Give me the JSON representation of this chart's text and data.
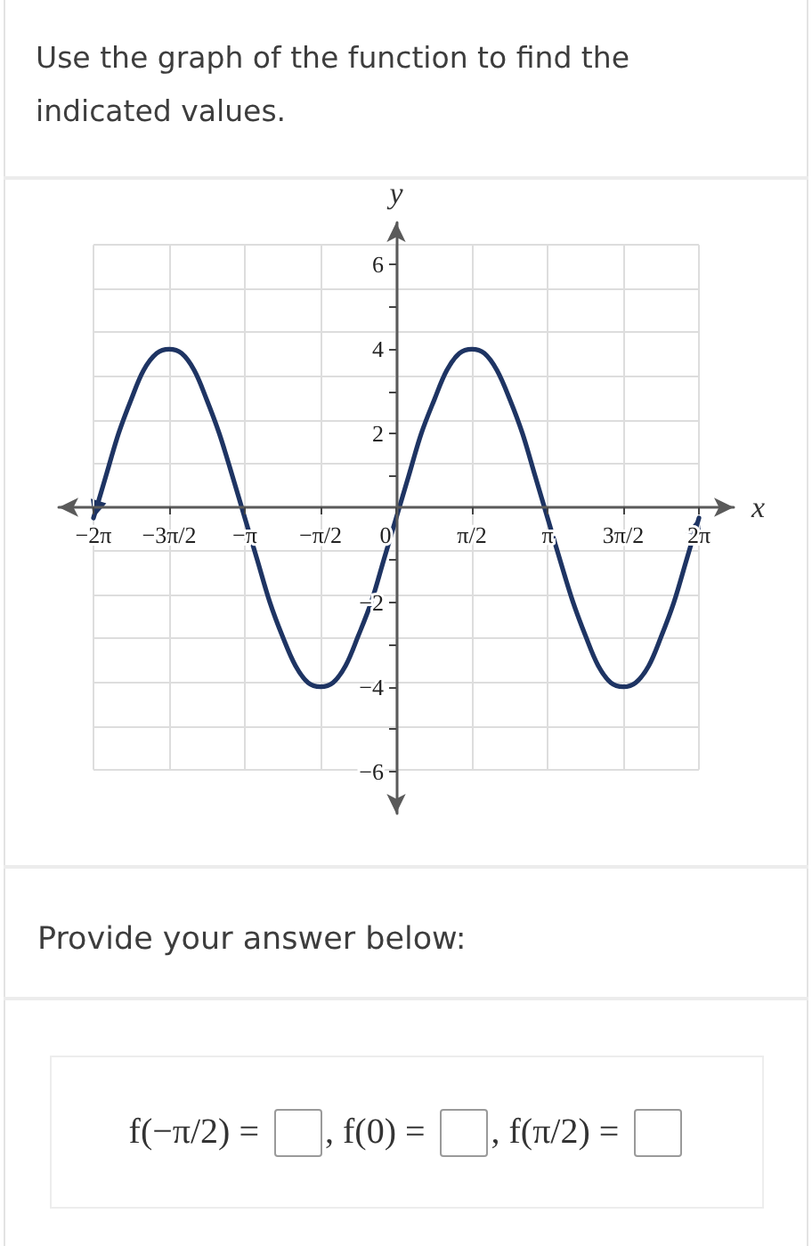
{
  "chart_data": {
    "type": "line",
    "title": "Use the graph of the function to find the indicated values.",
    "xlabel": "x",
    "ylabel": "y",
    "x": [
      -6.28,
      -6.02,
      -5.76,
      -5.5,
      -5.24,
      -4.97,
      -4.71,
      -4.45,
      -4.19,
      -3.93,
      -3.67,
      -3.4,
      -3.14,
      -2.88,
      -2.62,
      -2.36,
      -2.09,
      -1.83,
      -1.57,
      -1.31,
      -1.05,
      -0.79,
      -0.52,
      -0.26,
      0,
      0.26,
      0.52,
      0.79,
      1.05,
      1.31,
      1.57,
      1.83,
      2.09,
      2.36,
      2.62,
      2.88,
      3.14,
      3.4,
      3.67,
      3.93,
      4.19,
      4.45,
      4.71,
      4.97,
      5.24,
      5.5,
      5.76,
      6.02,
      6.28
    ],
    "values": [
      0,
      1,
      2,
      2.8,
      3.5,
      3.9,
      4,
      3.9,
      3.5,
      2.8,
      2,
      1,
      0,
      -1,
      -2,
      -2.8,
      -3.5,
      -3.9,
      -4,
      -3.9,
      -3.5,
      -2.8,
      -2,
      -1,
      0,
      1,
      2,
      2.8,
      3.5,
      3.9,
      4,
      3.9,
      3.5,
      2.8,
      2,
      1,
      0,
      -1,
      -2,
      -2.8,
      -3.5,
      -3.9,
      -4,
      -3.9,
      -3.5,
      -2.8,
      -2,
      -1,
      0
    ],
    "color": "#1e3463",
    "xlim": [
      -7,
      7
    ],
    "ylim": [
      -7,
      7
    ],
    "xticks": [
      {
        "value": -6.28,
        "label": "−2π"
      },
      {
        "value": -4.71,
        "label": "−3π/2"
      },
      {
        "value": -3.14,
        "label": "−π"
      },
      {
        "value": -1.57,
        "label": "−π/2"
      },
      {
        "value": 0,
        "label": "0"
      },
      {
        "value": 1.57,
        "label": "π/2"
      },
      {
        "value": 3.14,
        "label": "π"
      },
      {
        "value": 4.71,
        "label": "3π/2"
      },
      {
        "value": 6.28,
        "label": "2π"
      }
    ],
    "yticks": [
      {
        "value": -6,
        "label": "−6"
      },
      {
        "value": -5,
        "label": null
      },
      {
        "value": -4,
        "label": "−4"
      },
      {
        "value": -3,
        "label": null
      },
      {
        "value": -2,
        "label": "−2"
      },
      {
        "value": -1,
        "label": null
      },
      {
        "value": 1,
        "label": null
      },
      {
        "value": 2,
        "label": "2"
      },
      {
        "value": 3,
        "label": null
      },
      {
        "value": 4,
        "label": "4"
      },
      {
        "value": 5,
        "label": null
      },
      {
        "value": 6,
        "label": "6"
      }
    ],
    "grid": true,
    "annotations": [
      "Provide your answer below:",
      "f(−π/2) =",
      ", f(0) =",
      ", f(π/2) ="
    ]
  }
}
